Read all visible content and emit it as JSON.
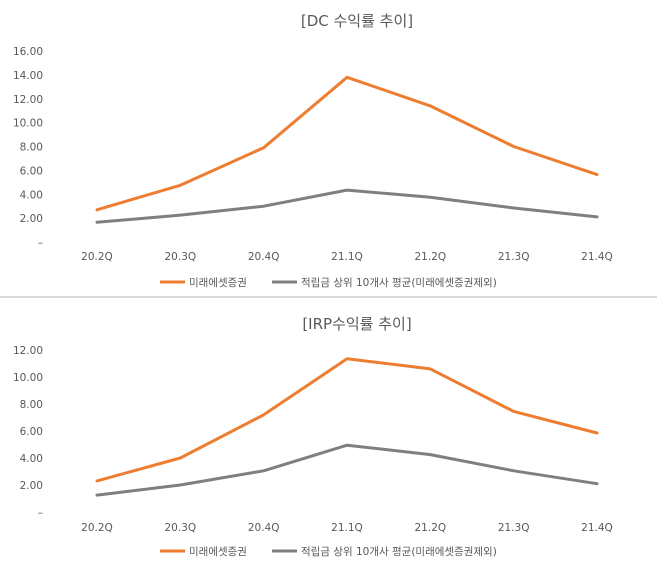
{
  "chart_data": [
    {
      "type": "line",
      "title": "[DC 수익률 추이]",
      "categories": [
        "20.2Q",
        "20.3Q",
        "20.4Q",
        "21.1Q",
        "21.2Q",
        "21.3Q",
        "21.4Q"
      ],
      "y_ticks": [
        "–",
        "2.00",
        "4.00",
        "6.00",
        "8.00",
        "10.00",
        "12.00",
        "14.00",
        "16.00"
      ],
      "ylim": [
        0,
        16
      ],
      "grid": false,
      "legend_position": "bottom",
      "series": [
        {
          "name": "미래에셋증권",
          "color": "#ED7D31",
          "values": [
            2.7,
            4.75,
            7.9,
            13.8,
            11.4,
            8.0,
            5.65
          ]
        },
        {
          "name": "적립금 상위 10개사 평균(미래에셋증권제외)",
          "color": "#7F7F7F",
          "values": [
            1.65,
            2.25,
            3.0,
            4.35,
            3.75,
            2.85,
            2.1
          ]
        }
      ]
    },
    {
      "type": "line",
      "title": "[IRP수익률 추이]",
      "categories": [
        "20.2Q",
        "20.3Q",
        "20.4Q",
        "21.1Q",
        "21.2Q",
        "21.3Q",
        "21.4Q"
      ],
      "y_ticks": [
        "–",
        "2.00",
        "4.00",
        "6.00",
        "8.00",
        "10.00",
        "12.00"
      ],
      "ylim": [
        0,
        12
      ],
      "grid": false,
      "legend_position": "bottom",
      "series": [
        {
          "name": "미래에셋증권",
          "color": "#ED7D31",
          "values": [
            2.3,
            4.0,
            7.2,
            11.35,
            10.6,
            7.45,
            5.85
          ]
        },
        {
          "name": "적립금 상위 10개사 평균(미래에셋증권제외)",
          "color": "#7F7F7F",
          "values": [
            1.25,
            2.0,
            3.05,
            4.95,
            4.25,
            3.05,
            2.1
          ]
        }
      ]
    }
  ]
}
